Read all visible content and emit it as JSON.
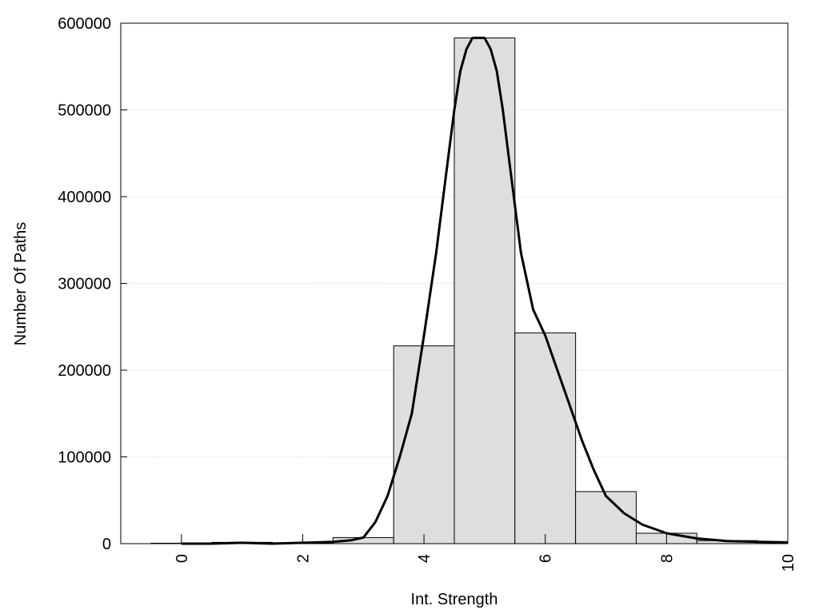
{
  "chart_data": {
    "type": "bar",
    "title": "",
    "xlabel": "Int. Strength",
    "ylabel": "Number Of Paths",
    "xlim": [
      -1,
      10
    ],
    "ylim": [
      0,
      600000
    ],
    "x_ticks": [
      0,
      2,
      4,
      6,
      8,
      10
    ],
    "y_ticks": [
      0,
      100000,
      200000,
      300000,
      400000,
      500000,
      600000
    ],
    "grid": "horizontal dotted",
    "legend": "none",
    "bin_width": 1,
    "bars": [
      {
        "x": 0,
        "value": 500
      },
      {
        "x": 1,
        "value": 1500
      },
      {
        "x": 2,
        "value": 1000
      },
      {
        "x": 3,
        "value": 7000
      },
      {
        "x": 4,
        "value": 228000
      },
      {
        "x": 5,
        "value": 583000
      },
      {
        "x": 6,
        "value": 243000
      },
      {
        "x": 7,
        "value": 60000
      },
      {
        "x": 8,
        "value": 12000
      },
      {
        "x": 9,
        "value": 3500
      },
      {
        "x": 10,
        "value": 1500
      }
    ],
    "curve": {
      "x": [
        0,
        0.5,
        1,
        1.5,
        2,
        2.5,
        2.8,
        3,
        3.2,
        3.4,
        3.6,
        3.8,
        4,
        4.2,
        4.4,
        4.5,
        4.6,
        4.7,
        4.8,
        4.9,
        5,
        5.1,
        5.2,
        5.3,
        5.4,
        5.5,
        5.6,
        5.8,
        6,
        6.2,
        6.4,
        6.6,
        6.8,
        7,
        7.3,
        7.6,
        8,
        8.5,
        9,
        9.5,
        10
      ],
      "y": [
        0,
        0,
        1000,
        0,
        1000,
        2000,
        4000,
        7000,
        25000,
        55000,
        100000,
        150000,
        240000,
        335000,
        445000,
        500000,
        545000,
        570000,
        583000,
        583000,
        583000,
        570000,
        545000,
        500000,
        445000,
        390000,
        335000,
        270000,
        240000,
        200000,
        160000,
        120000,
        85000,
        55000,
        35000,
        22000,
        12000,
        6000,
        3000,
        2000,
        1500
      ]
    },
    "colors": {
      "bar_fill": "#dedede",
      "bar_stroke": "#000000",
      "curve": "#000000",
      "grid": "#d8d8d8"
    }
  }
}
